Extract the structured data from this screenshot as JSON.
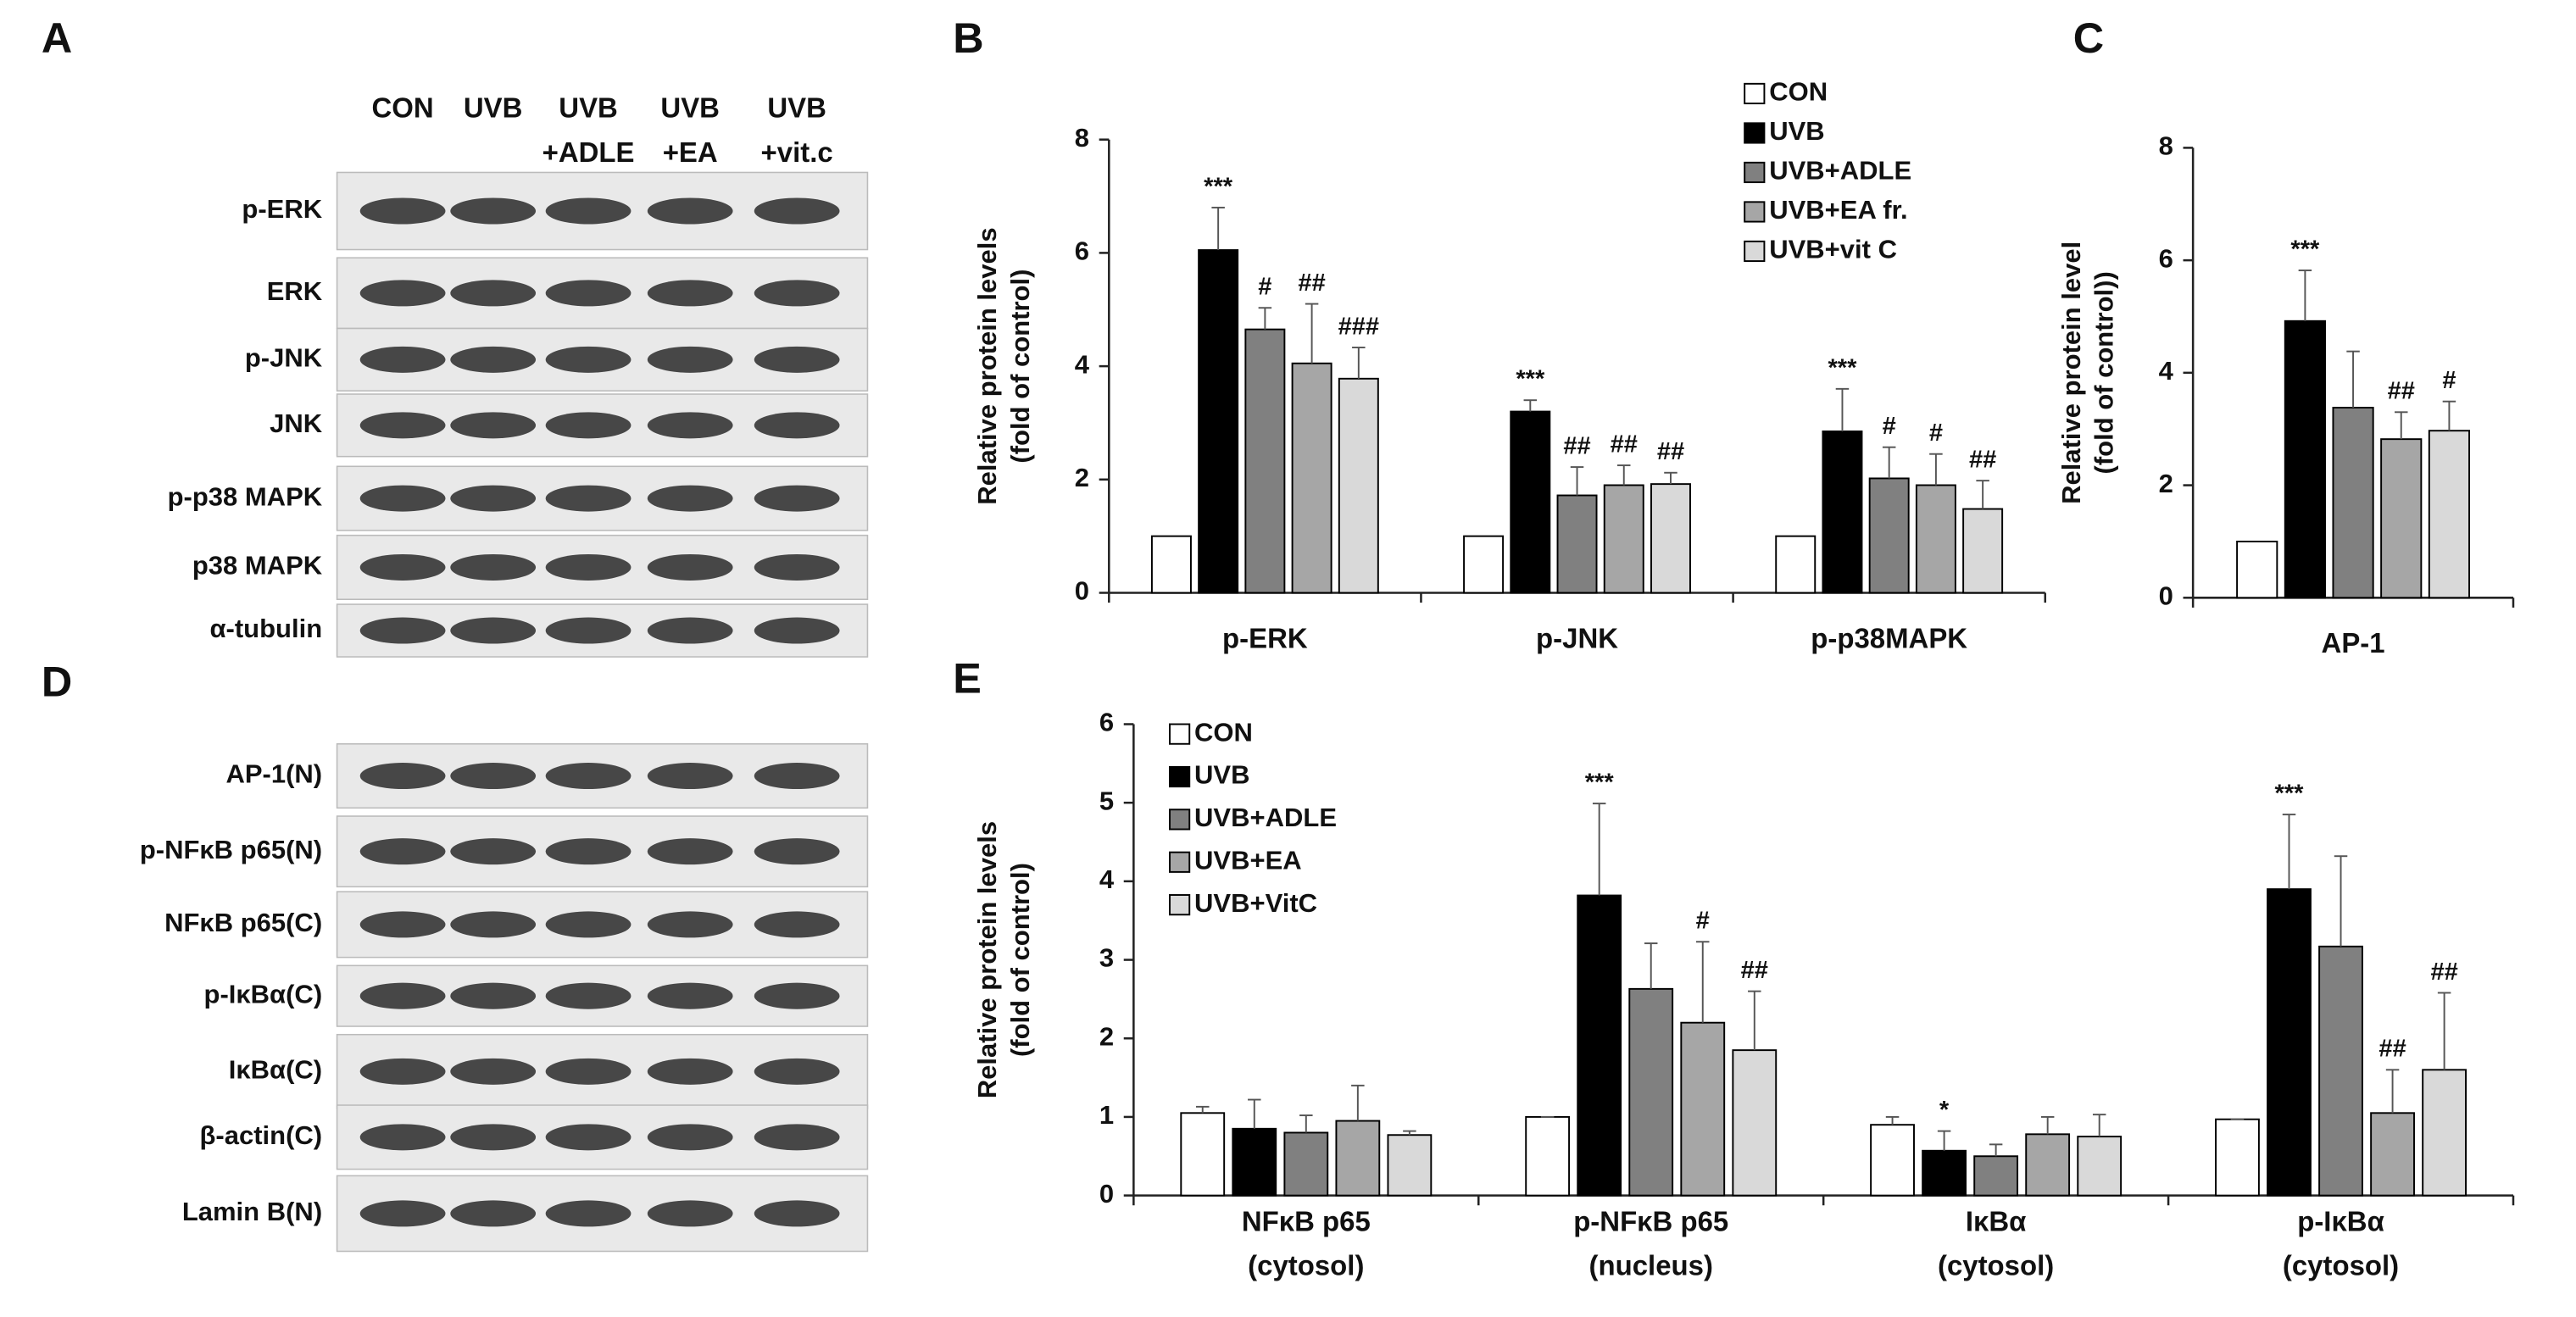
{
  "panels": {
    "A": {
      "letter": "A",
      "lanes": [
        [
          "CON"
        ],
        [
          "UVB"
        ],
        [
          "UVB",
          "+ADLE"
        ],
        [
          "UVB",
          "+EA"
        ],
        [
          "UVB",
          "+vit.c"
        ]
      ],
      "rows": [
        "p-ERK",
        "ERK",
        "p-JNK",
        "JNK",
        "p-p38 MAPK",
        "p38 MAPK",
        "α-tubulin"
      ]
    },
    "D": {
      "letter": "D",
      "rows": [
        "AP-1(N)",
        "p-NFκB p65(N)",
        "NFκB p65(C)",
        "p-IκBα(C)",
        "IκBα(C)",
        "β-actin(C)",
        "Lamin B(N)"
      ]
    }
  },
  "chart_data": [
    {
      "type": "bar",
      "panel_label": "B",
      "ylabel": [
        "Relative protein levels",
        "(fold of control)"
      ],
      "categories": [
        "p-ERK",
        "p-JNK",
        "p-p38MAPK"
      ],
      "ylim": [
        0,
        8
      ],
      "yticks": [
        0,
        2,
        4,
        6,
        8
      ],
      "legend": "top-right",
      "series": [
        {
          "name": "CON",
          "color": "#ffffff",
          "values": [
            1,
            1,
            1
          ]
        },
        {
          "name": "UVB",
          "color": "#000000",
          "values": [
            6.05,
            3.2,
            2.85
          ],
          "errors": [
            0.75,
            0.2,
            0.75
          ],
          "labels": [
            "***",
            "***",
            "***"
          ]
        },
        {
          "name": "UVB+ADLE",
          "color": "#808080",
          "values": [
            4.65,
            1.72,
            2.02
          ],
          "errors": [
            0.38,
            0.5,
            0.55
          ],
          "labels": [
            "#",
            "##",
            "#"
          ]
        },
        {
          "name": "UVB+EA fr.",
          "color": "#a6a6a6",
          "values": [
            4.05,
            1.9,
            1.9
          ],
          "errors": [
            1.05,
            0.35,
            0.55
          ],
          "labels": [
            "##",
            "##",
            "#"
          ]
        },
        {
          "name": "UVB+vit C",
          "color": "#d9d9d9",
          "values": [
            3.78,
            1.92,
            1.48
          ],
          "errors": [
            0.55,
            0.2,
            0.5
          ],
          "labels": [
            "###",
            "##",
            "##"
          ]
        }
      ]
    },
    {
      "type": "bar",
      "panel_label": "C",
      "ylabel": [
        "Relative protein level",
        "(fold of control))"
      ],
      "categories": [
        "AP-1"
      ],
      "ylim": [
        0,
        8
      ],
      "yticks": [
        0,
        2,
        4,
        6,
        8
      ],
      "series": [
        {
          "color": "#ffffff",
          "values": [
            1
          ]
        },
        {
          "color": "#000000",
          "values": [
            4.92
          ],
          "errors": [
            0.9
          ],
          "labels": [
            "***"
          ]
        },
        {
          "color": "#808080",
          "values": [
            3.38
          ],
          "errors": [
            1.0
          ]
        },
        {
          "color": "#a6a6a6",
          "values": [
            2.82
          ],
          "errors": [
            0.48
          ],
          "labels": [
            "##"
          ]
        },
        {
          "color": "#d9d9d9",
          "values": [
            2.97
          ],
          "errors": [
            0.52
          ],
          "labels": [
            "#"
          ]
        }
      ]
    },
    {
      "type": "bar",
      "panel_label": "E",
      "ylabel": [
        "Relative protein levels",
        "(fold of control)"
      ],
      "categories": [
        [
          "NFκB p65",
          "(cytosol)"
        ],
        [
          "p-NFκB p65",
          "(nucleus)"
        ],
        [
          "IκBα",
          "(cytosol)"
        ],
        [
          "p-IκBα",
          "(cytosol)"
        ]
      ],
      "ylim": [
        0,
        6
      ],
      "yticks": [
        0,
        1,
        2,
        3,
        4,
        5,
        6
      ],
      "legend": "top-left",
      "series": [
        {
          "name": "CON",
          "color": "#ffffff",
          "values": [
            1.05,
            1.0,
            0.9,
            0.97
          ],
          "errors": [
            0.08,
            0,
            0.1,
            0
          ]
        },
        {
          "name": "UVB",
          "color": "#000000",
          "values": [
            0.85,
            3.82,
            0.57,
            3.9
          ],
          "errors": [
            0.37,
            1.17,
            0.25,
            0.95
          ],
          "labels": [
            null,
            "***",
            "*",
            "***"
          ]
        },
        {
          "name": "UVB+ADLE",
          "color": "#808080",
          "values": [
            0.8,
            2.63,
            0.5,
            3.17
          ],
          "errors": [
            0.22,
            0.58,
            0.15,
            1.15
          ]
        },
        {
          "name": "UVB+EA",
          "color": "#a6a6a6",
          "values": [
            0.95,
            2.2,
            0.78,
            1.05
          ],
          "errors": [
            0.45,
            1.03,
            0.22,
            0.55
          ],
          "labels": [
            null,
            "#",
            null,
            "##"
          ]
        },
        {
          "name": "UVB+VitC",
          "color": "#d9d9d9",
          "values": [
            0.77,
            1.85,
            0.75,
            1.6
          ],
          "errors": [
            0.05,
            0.75,
            0.28,
            0.98
          ],
          "labels": [
            null,
            "##",
            null,
            "##"
          ]
        }
      ]
    }
  ]
}
